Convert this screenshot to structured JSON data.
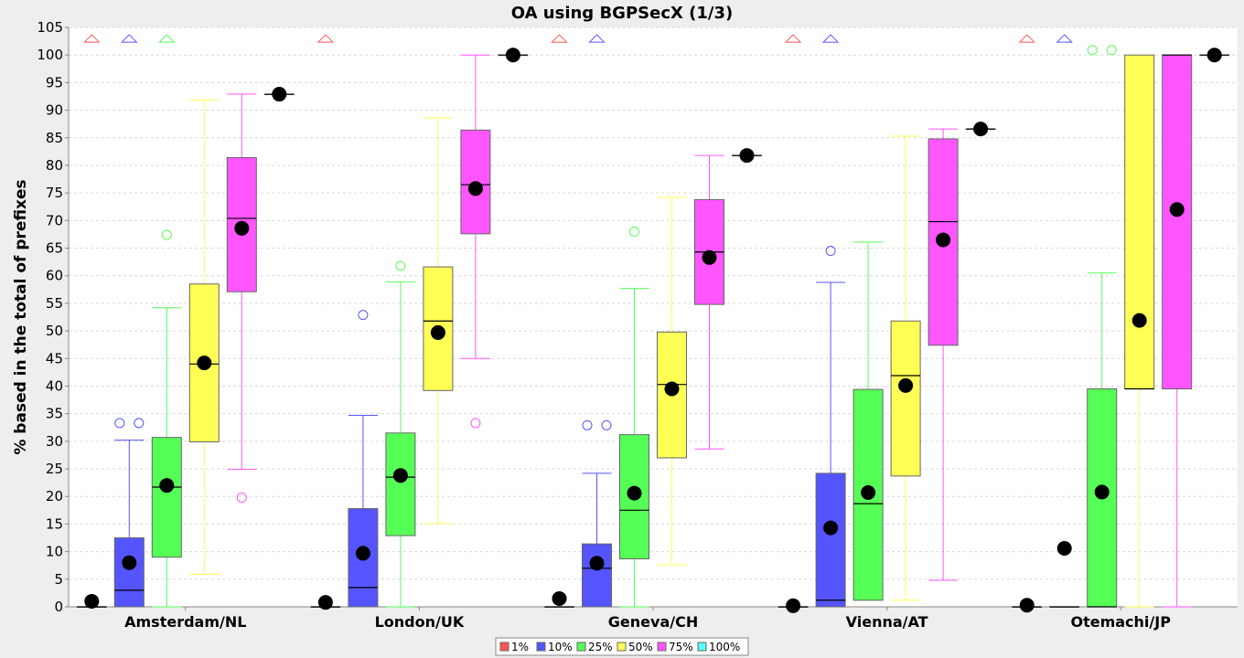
{
  "chart_data": {
    "type": "box",
    "title": "OA using BGPSecX  (1/3)",
    "xlabel": "",
    "ylabel": "% based in the total of prefixes",
    "ylim": [
      0,
      105
    ],
    "yticks": [
      0,
      5,
      10,
      15,
      20,
      25,
      30,
      35,
      40,
      45,
      50,
      55,
      60,
      65,
      70,
      75,
      80,
      85,
      90,
      95,
      100,
      105
    ],
    "grid": true,
    "legend_position": "bottom-center",
    "categories": [
      "Amsterdam/NL",
      "London/UK",
      "Geneva/CH",
      "Vienna/AT",
      "Otemachi/JP"
    ],
    "series": [
      {
        "name": "1%",
        "color": "#ff5555",
        "boxes": [
          {
            "min": 0,
            "q1": 0,
            "median": 0,
            "q3": 0,
            "max": 0,
            "mean": 1,
            "outliers": [],
            "far_out": [
              103
            ]
          },
          {
            "min": 0,
            "q1": 0,
            "median": 0,
            "q3": 0,
            "max": 0,
            "mean": 0.8,
            "outliers": [],
            "far_out": [
              103
            ]
          },
          {
            "min": 0,
            "q1": 0,
            "median": 0,
            "q3": 0,
            "max": 0,
            "mean": 1.5,
            "outliers": [],
            "far_out": [
              103
            ]
          },
          {
            "min": 0,
            "q1": 0,
            "median": 0,
            "q3": 0,
            "max": 0,
            "mean": 0.2,
            "outliers": [],
            "far_out": [
              103
            ]
          },
          {
            "min": 0,
            "q1": 0,
            "median": 0,
            "q3": 0,
            "max": 0,
            "mean": 0.3,
            "outliers": [],
            "far_out": [
              103
            ]
          }
        ]
      },
      {
        "name": "10%",
        "color": "#5555ff",
        "boxes": [
          {
            "min": 0,
            "q1": 0,
            "median": 3,
            "q3": 12.5,
            "max": 30.2,
            "mean": 8,
            "outliers": [
              33.3,
              33.3
            ],
            "far_out": [
              103
            ]
          },
          {
            "min": 0,
            "q1": 0,
            "median": 3.5,
            "q3": 17.8,
            "max": 34.7,
            "mean": 9.7,
            "outliers": [
              52.9
            ],
            "far_out": []
          },
          {
            "min": 0,
            "q1": 0,
            "median": 7,
            "q3": 11.4,
            "max": 24.2,
            "mean": 7.9,
            "outliers": [
              32.9,
              32.9
            ],
            "far_out": [
              103
            ]
          },
          {
            "min": 0,
            "q1": 0,
            "median": 1.2,
            "q3": 24.2,
            "max": 58.8,
            "mean": 14.3,
            "outliers": [
              64.5
            ],
            "far_out": [
              103
            ]
          },
          {
            "min": 0,
            "q1": 0,
            "median": 0,
            "q3": 0,
            "max": 0,
            "mean": 10.6,
            "outliers": [],
            "far_out": [
              103
            ]
          }
        ]
      },
      {
        "name": "25%",
        "color": "#55ff55",
        "boxes": [
          {
            "min": 0,
            "q1": 9,
            "median": 21.7,
            "q3": 30.7,
            "max": 54.2,
            "mean": 22,
            "outliers": [
              67.4
            ],
            "far_out": [
              103
            ]
          },
          {
            "min": 0,
            "q1": 12.9,
            "median": 23.5,
            "q3": 31.5,
            "max": 58.9,
            "mean": 23.8,
            "outliers": [
              61.8
            ],
            "far_out": []
          },
          {
            "min": 0,
            "q1": 8.7,
            "median": 17.5,
            "q3": 31.2,
            "max": 57.7,
            "mean": 20.6,
            "outliers": [
              68
            ],
            "far_out": []
          },
          {
            "min": 1.2,
            "q1": 1.2,
            "median": 18.7,
            "q3": 39.4,
            "max": 66.1,
            "mean": 20.7,
            "outliers": [],
            "far_out": []
          },
          {
            "min": 0,
            "q1": 0,
            "median": 0,
            "q3": 39.5,
            "max": 60.5,
            "mean": 20.8,
            "outliers": [
              100.9,
              100.9
            ],
            "far_out": []
          }
        ]
      },
      {
        "name": "50%",
        "color": "#ffff55",
        "boxes": [
          {
            "min": 5.9,
            "q1": 29.9,
            "median": 44,
            "q3": 58.5,
            "max": 91.8,
            "mean": 44.2,
            "outliers": [],
            "far_out": []
          },
          {
            "min": 15.1,
            "q1": 39.2,
            "median": 51.8,
            "q3": 61.6,
            "max": 88.6,
            "mean": 49.7,
            "outliers": [],
            "far_out": []
          },
          {
            "min": 7.6,
            "q1": 27,
            "median": 40.3,
            "q3": 49.8,
            "max": 74.2,
            "mean": 39.5,
            "outliers": [],
            "far_out": []
          },
          {
            "min": 1.2,
            "q1": 23.7,
            "median": 41.9,
            "q3": 51.8,
            "max": 85.3,
            "mean": 40.1,
            "outliers": [],
            "far_out": []
          },
          {
            "min": 0,
            "q1": 39.5,
            "median": 39.5,
            "q3": 100,
            "max": 100,
            "mean": 51.9,
            "outliers": [],
            "far_out": []
          }
        ]
      },
      {
        "name": "75%",
        "color": "#ff55ff",
        "boxes": [
          {
            "min": 24.9,
            "q1": 57.1,
            "median": 70.4,
            "q3": 81.4,
            "max": 92.9,
            "mean": 68.6,
            "outliers": [
              19.8
            ],
            "far_out": []
          },
          {
            "min": 45,
            "q1": 67.6,
            "median": 76.5,
            "q3": 86.4,
            "max": 100,
            "mean": 75.8,
            "outliers": [
              33.3
            ],
            "far_out": []
          },
          {
            "min": 28.6,
            "q1": 54.8,
            "median": 64.3,
            "q3": 73.8,
            "max": 81.8,
            "mean": 63.3,
            "outliers": [],
            "far_out": []
          },
          {
            "min": 4.8,
            "q1": 47.4,
            "median": 69.8,
            "q3": 84.8,
            "max": 86.6,
            "mean": 66.5,
            "outliers": [],
            "far_out": []
          },
          {
            "min": 0,
            "q1": 39.5,
            "median": 100,
            "q3": 100,
            "max": 100,
            "mean": 72,
            "outliers": [],
            "far_out": []
          }
        ]
      },
      {
        "name": "100%",
        "color": "#55ffff",
        "boxes": [
          {
            "min": 92.9,
            "q1": 92.9,
            "median": 92.9,
            "q3": 92.9,
            "max": 92.9,
            "mean": 92.9,
            "outliers": [],
            "far_out": []
          },
          {
            "min": 100,
            "q1": 100,
            "median": 100,
            "q3": 100,
            "max": 100,
            "mean": 100,
            "outliers": [],
            "far_out": []
          },
          {
            "min": 81.8,
            "q1": 81.8,
            "median": 81.8,
            "q3": 81.8,
            "max": 81.8,
            "mean": 81.8,
            "outliers": [],
            "far_out": []
          },
          {
            "min": 86.6,
            "q1": 86.6,
            "median": 86.6,
            "q3": 86.6,
            "max": 86.6,
            "mean": 86.6,
            "outliers": [],
            "far_out": []
          },
          {
            "min": 100,
            "q1": 100,
            "median": 100,
            "q3": 100,
            "max": 100,
            "mean": 100,
            "outliers": [],
            "far_out": []
          }
        ]
      }
    ]
  }
}
